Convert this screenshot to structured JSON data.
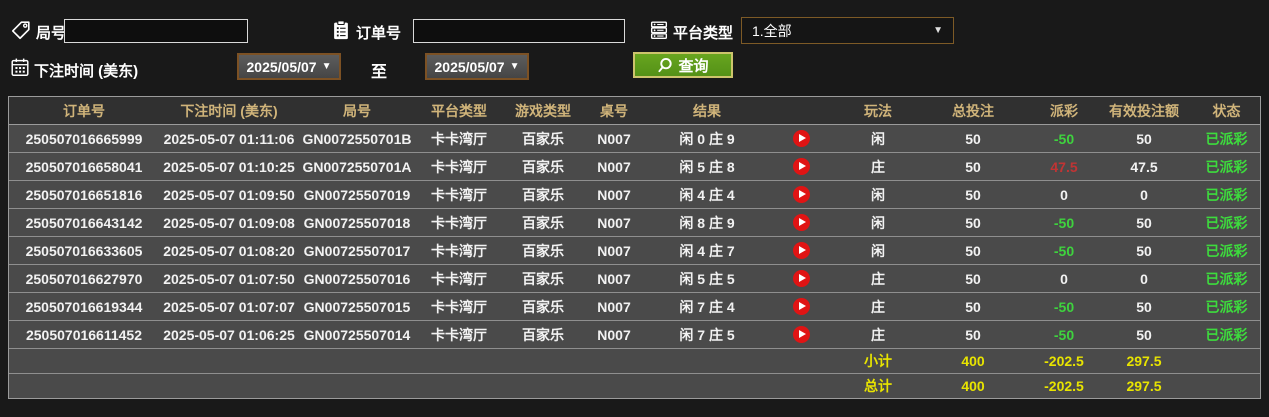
{
  "filters": {
    "round": {
      "label": "局号",
      "value": "",
      "icon": "tag-icon"
    },
    "order": {
      "label": "订单号",
      "value": "",
      "icon": "clipboard-icon"
    },
    "platform": {
      "label": "平台类型",
      "selected": "1.全部",
      "icon": "server-icon"
    },
    "bet_time": {
      "label": "下注时间 (美东)",
      "from": "2025/05/07",
      "to_label": "至",
      "to": "2025/05/07",
      "icon": "calendar-icon"
    },
    "search": {
      "label": "查询",
      "icon": "magnifier-icon"
    }
  },
  "table": {
    "headers": [
      "订单号",
      "下注时间 (美东)",
      "局号",
      "平台类型",
      "游戏类型",
      "桌号",
      "结果",
      "玩法",
      "总投注",
      "派彩",
      "有效投注额",
      "状态"
    ],
    "rows": [
      {
        "order_no": "250507016665999",
        "bet_time": "2025-05-07 01:11:06",
        "round_no": "GN0072550701B",
        "platform": "卡卡湾厅",
        "game_type": "百家乐",
        "table_no": "N007",
        "result": "闲 0 庄 9",
        "play": "闲",
        "total_bet": "50",
        "payout": "-50",
        "valid_bet": "50",
        "status": "已派彩"
      },
      {
        "order_no": "250507016658041",
        "bet_time": "2025-05-07 01:10:25",
        "round_no": "GN0072550701A",
        "platform": "卡卡湾厅",
        "game_type": "百家乐",
        "table_no": "N007",
        "result": "闲 5 庄 8",
        "play": "庄",
        "total_bet": "50",
        "payout": "47.5",
        "valid_bet": "47.5",
        "status": "已派彩"
      },
      {
        "order_no": "250507016651816",
        "bet_time": "2025-05-07 01:09:50",
        "round_no": "GN00725507019",
        "platform": "卡卡湾厅",
        "game_type": "百家乐",
        "table_no": "N007",
        "result": "闲 4 庄 4",
        "play": "闲",
        "total_bet": "50",
        "payout": "0",
        "valid_bet": "0",
        "status": "已派彩"
      },
      {
        "order_no": "250507016643142",
        "bet_time": "2025-05-07 01:09:08",
        "round_no": "GN00725507018",
        "platform": "卡卡湾厅",
        "game_type": "百家乐",
        "table_no": "N007",
        "result": "闲 8 庄 9",
        "play": "闲",
        "total_bet": "50",
        "payout": "-50",
        "valid_bet": "50",
        "status": "已派彩"
      },
      {
        "order_no": "250507016633605",
        "bet_time": "2025-05-07 01:08:20",
        "round_no": "GN00725507017",
        "platform": "卡卡湾厅",
        "game_type": "百家乐",
        "table_no": "N007",
        "result": "闲 4 庄 7",
        "play": "闲",
        "total_bet": "50",
        "payout": "-50",
        "valid_bet": "50",
        "status": "已派彩"
      },
      {
        "order_no": "250507016627970",
        "bet_time": "2025-05-07 01:07:50",
        "round_no": "GN00725507016",
        "platform": "卡卡湾厅",
        "game_type": "百家乐",
        "table_no": "N007",
        "result": "闲 5 庄 5",
        "play": "庄",
        "total_bet": "50",
        "payout": "0",
        "valid_bet": "0",
        "status": "已派彩"
      },
      {
        "order_no": "250507016619344",
        "bet_time": "2025-05-07 01:07:07",
        "round_no": "GN00725507015",
        "platform": "卡卡湾厅",
        "game_type": "百家乐",
        "table_no": "N007",
        "result": "闲 7 庄 4",
        "play": "庄",
        "total_bet": "50",
        "payout": "-50",
        "valid_bet": "50",
        "status": "已派彩"
      },
      {
        "order_no": "250507016611452",
        "bet_time": "2025-05-07 01:06:25",
        "round_no": "GN00725507014",
        "platform": "卡卡湾厅",
        "game_type": "百家乐",
        "table_no": "N007",
        "result": "闲 7 庄 5",
        "play": "庄",
        "total_bet": "50",
        "payout": "-50",
        "valid_bet": "50",
        "status": "已派彩"
      }
    ],
    "subtotal": {
      "label": "小计",
      "total_bet": "400",
      "payout": "-202.5",
      "valid_bet": "297.5"
    },
    "grand_total": {
      "label": "总计",
      "total_bet": "400",
      "payout": "-202.5",
      "valid_bet": "297.5"
    }
  },
  "colors": {
    "header_gold": "#d0b47a",
    "payout_negative_green": "#3ed33e",
    "payout_positive_red": "#c03434",
    "status_green": "#3ddb3d",
    "summary_yellow": "#e8e400",
    "search_button_green": "#5e9c1b",
    "play_icon_red": "#e01414"
  }
}
